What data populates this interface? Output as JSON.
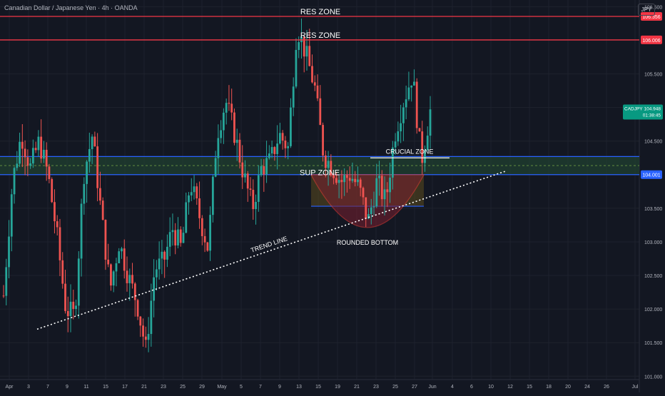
{
  "header": {
    "symbol_line": "Canadian Dollar / Japanese Yen · 4h · OANDA",
    "currency": "JPY"
  },
  "colors": {
    "bg": "#131722",
    "up": "#26a69a",
    "down": "#ef5350",
    "res_line": "#f23645",
    "sup_line": "#2962ff",
    "zone_fill": "#1f3d2f",
    "bowl_fill": "#7a2030",
    "grid": "#1e222d",
    "axis_text": "#b2b5be",
    "last_price": "#089981"
  },
  "chart_data": {
    "type": "candlestick",
    "ylim": [
      100.95,
      106.6
    ],
    "y_ticks": [
      "101.000",
      "101.500",
      "102.000",
      "102.500",
      "103.000",
      "103.500",
      "104.000",
      "104.500",
      "105.000",
      "105.500",
      "106.000",
      "106.500"
    ],
    "x_ticks": [
      "Apr",
      "3",
      "7",
      "9",
      "11",
      "15",
      "17",
      "21",
      "23",
      "25",
      "29",
      "May",
      "5",
      "7",
      "9",
      "13",
      "15",
      "19",
      "21",
      "23",
      "25",
      "27",
      "Jun",
      "4",
      "6",
      "10",
      "12",
      "15",
      "18",
      "20",
      "24",
      "26",
      "Jul"
    ],
    "price_path": [
      102.2,
      103.9,
      104.6,
      104.1,
      104.5,
      104.0,
      103.1,
      102.0,
      101.9,
      104.0,
      104.6,
      103.4,
      102.3,
      103.0,
      102.5,
      102.1,
      101.4,
      102.6,
      102.7,
      103.2,
      102.9,
      103.9,
      103.4,
      102.9,
      104.6,
      105.1,
      104.6,
      104.0,
      103.5,
      104.1,
      104.2,
      104.6,
      104.4,
      106.2,
      105.8,
      105.3,
      104.3,
      104.1,
      103.9,
      104.0,
      103.8,
      103.3,
      103.9,
      103.6,
      104.6,
      105.1,
      105.5,
      104.2,
      104.95
    ],
    "resistance_levels": [
      {
        "label": "RES ZONE",
        "price": 106.356,
        "price_label": "106.356"
      },
      {
        "label": "RES ZONE",
        "price": 106.006,
        "price_label": "106.006"
      }
    ],
    "support_zone": {
      "label": "SUP ZONE",
      "top": 104.27,
      "bottom": 104.001,
      "price_label": "104.001"
    },
    "crucial_zone": {
      "label": "CRUCIAL ZONE",
      "price": 104.25
    },
    "trend_line": {
      "label": "TREND LINE",
      "start": [
        "Apr",
        101.7
      ],
      "end": [
        "Jun",
        104.05
      ]
    },
    "rounded_bottom": {
      "label": "ROUNDED BOTTOM",
      "low": 103.15
    },
    "box_zone": {
      "top": 104.0,
      "bottom": 103.53
    },
    "last_price": {
      "symbol": "CADJPY",
      "price_label": "104.948",
      "countdown": "01:38:45"
    }
  }
}
